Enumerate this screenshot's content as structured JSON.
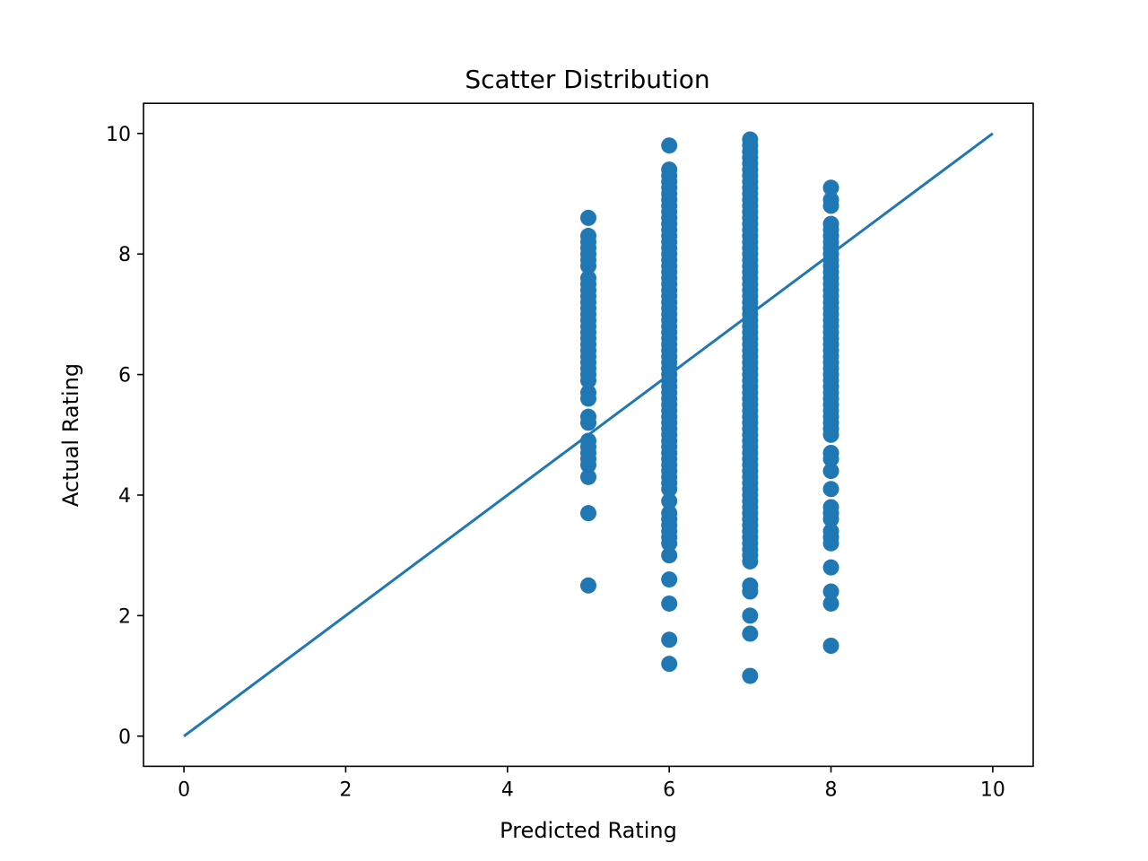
{
  "chart_data": {
    "type": "scatter",
    "title": "Scatter Distribution",
    "xlabel": "Predicted Rating",
    "ylabel": "Actual Rating",
    "xlim": [
      -0.5,
      10.5
    ],
    "ylim": [
      -0.5,
      10.5
    ],
    "xticks": [
      "0",
      "2",
      "4",
      "6",
      "8",
      "10"
    ],
    "yticks": [
      "0",
      "2",
      "4",
      "6",
      "8",
      "10"
    ],
    "grid": false,
    "marker_color": "#1f77b4",
    "line_color": "#1f77b4",
    "reference_line": {
      "x": [
        0,
        10
      ],
      "y": [
        0,
        10
      ]
    },
    "series": [
      {
        "x": 5,
        "y": [
          2.5,
          3.7,
          4.3,
          4.5,
          4.6,
          4.7,
          4.8,
          4.9,
          5.2,
          5.3,
          5.6,
          5.7,
          5.9,
          6.0,
          6.1,
          6.2,
          6.3,
          6.4,
          6.5,
          6.6,
          6.7,
          6.8,
          6.9,
          7.0,
          7.1,
          7.2,
          7.3,
          7.4,
          7.5,
          7.6,
          7.8,
          7.9,
          8.0,
          8.1,
          8.2,
          8.3,
          8.6
        ]
      },
      {
        "x": 6,
        "y": [
          1.2,
          1.6,
          2.2,
          2.6,
          3.0,
          3.2,
          3.3,
          3.4,
          3.5,
          3.6,
          3.7,
          3.9,
          4.1,
          4.2,
          4.3,
          4.4,
          4.5,
          4.6,
          4.7,
          4.8,
          4.9,
          5.0,
          5.1,
          5.2,
          5.3,
          5.4,
          5.5,
          5.6,
          5.7,
          5.8,
          5.9,
          6.0,
          6.1,
          6.2,
          6.3,
          6.4,
          6.5,
          6.6,
          6.7,
          6.8,
          6.9,
          7.0,
          7.1,
          7.2,
          7.3,
          7.4,
          7.5,
          7.6,
          7.7,
          7.8,
          7.9,
          8.0,
          8.1,
          8.2,
          8.3,
          8.4,
          8.5,
          8.6,
          8.7,
          8.8,
          8.9,
          9.0,
          9.1,
          9.2,
          9.3,
          9.4,
          9.8
        ]
      },
      {
        "x": 7,
        "y": [
          1.0,
          1.7,
          2.0,
          2.4,
          2.5,
          2.9,
          3.0,
          3.1,
          3.2,
          3.3,
          3.4,
          3.5,
          3.6,
          3.7,
          3.8,
          3.9,
          4.0,
          4.1,
          4.2,
          4.3,
          4.4,
          4.5,
          4.6,
          4.7,
          4.8,
          4.9,
          5.0,
          5.1,
          5.2,
          5.3,
          5.4,
          5.5,
          5.6,
          5.7,
          5.8,
          5.9,
          6.0,
          6.1,
          6.2,
          6.3,
          6.4,
          6.5,
          6.6,
          6.7,
          6.8,
          6.9,
          7.0,
          7.1,
          7.2,
          7.3,
          7.4,
          7.5,
          7.6,
          7.7,
          7.8,
          7.9,
          8.0,
          8.1,
          8.2,
          8.3,
          8.4,
          8.5,
          8.6,
          8.7,
          8.8,
          8.9,
          9.0,
          9.1,
          9.2,
          9.3,
          9.4,
          9.5,
          9.6,
          9.7,
          9.8,
          9.9
        ]
      },
      {
        "x": 8,
        "y": [
          1.5,
          2.2,
          2.4,
          2.8,
          3.2,
          3.3,
          3.4,
          3.6,
          3.7,
          3.8,
          4.1,
          4.4,
          4.6,
          4.7,
          5.0,
          5.1,
          5.2,
          5.3,
          5.4,
          5.5,
          5.6,
          5.7,
          5.8,
          5.9,
          6.0,
          6.1,
          6.2,
          6.3,
          6.4,
          6.5,
          6.6,
          6.7,
          6.8,
          6.9,
          7.0,
          7.1,
          7.2,
          7.3,
          7.4,
          7.5,
          7.6,
          7.7,
          7.8,
          7.9,
          8.0,
          8.1,
          8.2,
          8.3,
          8.4,
          8.5,
          8.8,
          8.9,
          9.1
        ]
      }
    ]
  }
}
